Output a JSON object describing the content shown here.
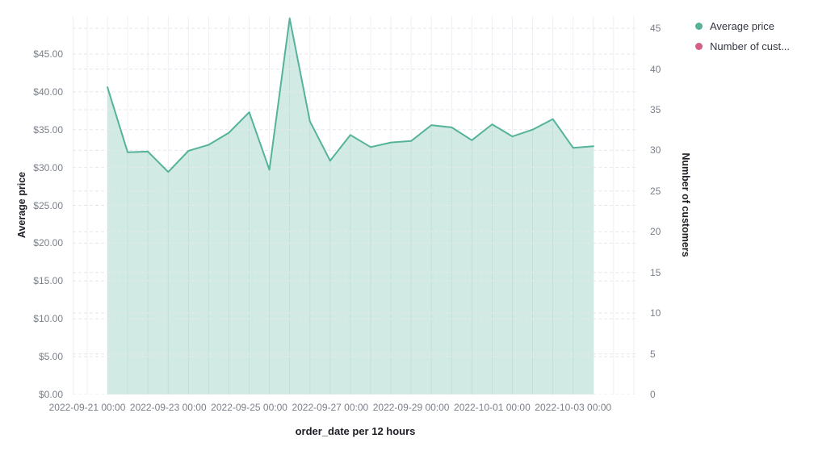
{
  "page": {
    "background": "#ffffff"
  },
  "legend": {
    "position": "top-right",
    "items": [
      {
        "label": "Average price",
        "color": "#54B399"
      },
      {
        "label": "Number of cust...",
        "color": "#D36086"
      }
    ]
  },
  "chart_data": {
    "type": "area",
    "title": "",
    "xlabel": "order_date per 12 hours",
    "ylabel_left": "Average price",
    "ylabel_right": "Number of customers",
    "grid": true,
    "legend_position": "top-right",
    "x_axis": {
      "tick_labels": [
        "2022-09-21 00:00",
        "2022-09-23 00:00",
        "2022-09-25 00:00",
        "2022-09-27 00:00",
        "2022-09-29 00:00",
        "2022-10-01 00:00",
        "2022-10-03 00:00"
      ],
      "gridlines_per_bucket_hours": 12,
      "ticks_every_n_buckets": 4
    },
    "y_axis_left": {
      "tick_labels": [
        "$0.00",
        "$5.00",
        "$10.00",
        "$15.00",
        "$20.00",
        "$25.00",
        "$30.00",
        "$35.00",
        "$40.00",
        "$45.00"
      ],
      "tick_values": [
        0,
        5,
        10,
        15,
        20,
        25,
        30,
        35,
        40,
        45
      ],
      "range": [
        0,
        50
      ]
    },
    "y_axis_right": {
      "tick_labels": [
        "0",
        "5",
        "10",
        "15",
        "20",
        "25",
        "30",
        "35",
        "40",
        "45"
      ],
      "tick_values": [
        0,
        5,
        10,
        15,
        20,
        25,
        30,
        35,
        40,
        45
      ],
      "range": [
        0,
        46.5
      ]
    },
    "series": [
      {
        "name": "Average price",
        "type": "area",
        "axis": "left",
        "color": "#54B399",
        "fill_opacity": 0.27,
        "x": [
          "2022-09-21 12:00",
          "2022-09-22 00:00",
          "2022-09-22 12:00",
          "2022-09-23 00:00",
          "2022-09-23 12:00",
          "2022-09-24 00:00",
          "2022-09-24 12:00",
          "2022-09-25 00:00",
          "2022-09-25 12:00",
          "2022-09-26 00:00",
          "2022-09-26 12:00",
          "2022-09-27 00:00",
          "2022-09-27 12:00",
          "2022-09-28 00:00",
          "2022-09-28 12:00",
          "2022-09-29 00:00",
          "2022-09-29 12:00",
          "2022-09-30 00:00",
          "2022-09-30 12:00",
          "2022-10-01 00:00",
          "2022-10-01 12:00",
          "2022-10-02 00:00",
          "2022-10-02 12:00",
          "2022-10-03 00:00",
          "2022-10-03 12:00"
        ],
        "values": [
          40.6,
          32.0,
          32.1,
          29.4,
          32.2,
          33.0,
          34.6,
          37.3,
          29.7,
          49.7,
          36.1,
          30.9,
          34.3,
          32.7,
          33.3,
          33.5,
          35.6,
          35.3,
          33.6,
          35.7,
          34.1,
          35.0,
          36.4,
          32.6,
          32.8
        ]
      },
      {
        "name": "Number of cust...",
        "type": "line",
        "axis": "right",
        "color": "#D36086",
        "values": []
      }
    ],
    "colors": {
      "vertical_gridline": "#edf0f4",
      "horizontal_gridline": "#e4e8ee",
      "tick_label": "#7b8089",
      "axis_title": "#1d1e24"
    }
  }
}
